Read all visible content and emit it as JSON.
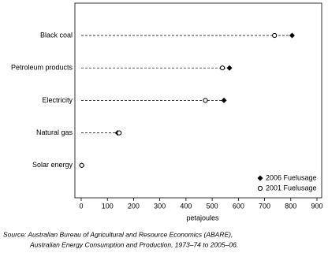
{
  "chart_data": {
    "type": "dot",
    "categories": [
      "Black coal",
      "Petroleum products",
      "Electricity",
      "Natural gas",
      "Solar energy"
    ],
    "series": [
      {
        "name": "2006 Fuelusage",
        "color": "#000000",
        "marker": "diamond",
        "values": [
          805,
          566,
          545,
          139,
          2
        ]
      },
      {
        "name": "2001 Fuelusage",
        "color": "#000000",
        "marker": "circle",
        "values": [
          738,
          539,
          474,
          145,
          2
        ]
      }
    ],
    "xlabel": "petajoules",
    "xlim": [
      0,
      900
    ],
    "xticks": [
      0,
      100,
      200,
      300,
      400,
      500,
      600,
      700,
      800,
      900
    ],
    "legend": "bottom-right",
    "source": [
      "Source: Australian Bureau of Agricultural and Resource Economics (ABARE),",
      "Australian Energy Consumption and Production, 1973–74 to 2005–06."
    ]
  }
}
